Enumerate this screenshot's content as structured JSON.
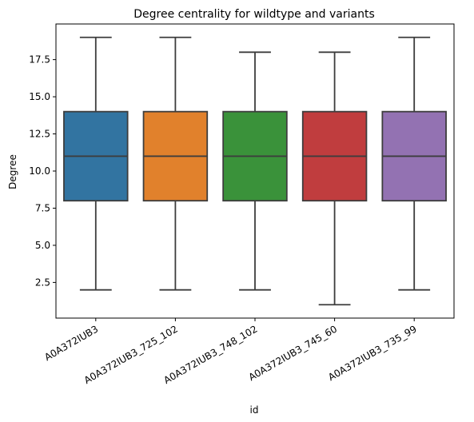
{
  "chart_data": {
    "type": "box",
    "title": "Degree centrality for wildtype and variants",
    "xlabel": "id",
    "ylabel": "Degree",
    "ylim": [
      0.1,
      19.9
    ],
    "yticks": [
      "2.5",
      "5.0",
      "7.5",
      "10.0",
      "12.5",
      "15.0",
      "17.5"
    ],
    "categories": [
      "A0A372IUB3",
      "A0A372IUB3_725_102",
      "A0A372IUB3_748_102",
      "A0A372IUB3_745_60",
      "A0A372IUB3_735_99"
    ],
    "x_tick_rotation": 30,
    "grid": false,
    "legend": "none",
    "boxes": [
      {
        "category": "A0A372IUB3",
        "whisker_low": 2,
        "q1": 8,
        "median": 11,
        "q3": 14,
        "whisker_high": 19,
        "color": "#3274a1"
      },
      {
        "category": "A0A372IUB3_725_102",
        "whisker_low": 2,
        "q1": 8,
        "median": 11,
        "q3": 14,
        "whisker_high": 19,
        "color": "#e1812c"
      },
      {
        "category": "A0A372IUB3_748_102",
        "whisker_low": 2,
        "q1": 8,
        "median": 11,
        "q3": 14,
        "whisker_high": 18,
        "color": "#3a923a"
      },
      {
        "category": "A0A372IUB3_745_60",
        "whisker_low": 1,
        "q1": 8,
        "median": 11,
        "q3": 14,
        "whisker_high": 18,
        "color": "#c03d3e"
      },
      {
        "category": "A0A372IUB3_735_99",
        "whisker_low": 2,
        "q1": 8,
        "median": 11,
        "q3": 14,
        "whisker_high": 19,
        "color": "#9372b2"
      }
    ],
    "line_color": "#3d3d3d"
  }
}
